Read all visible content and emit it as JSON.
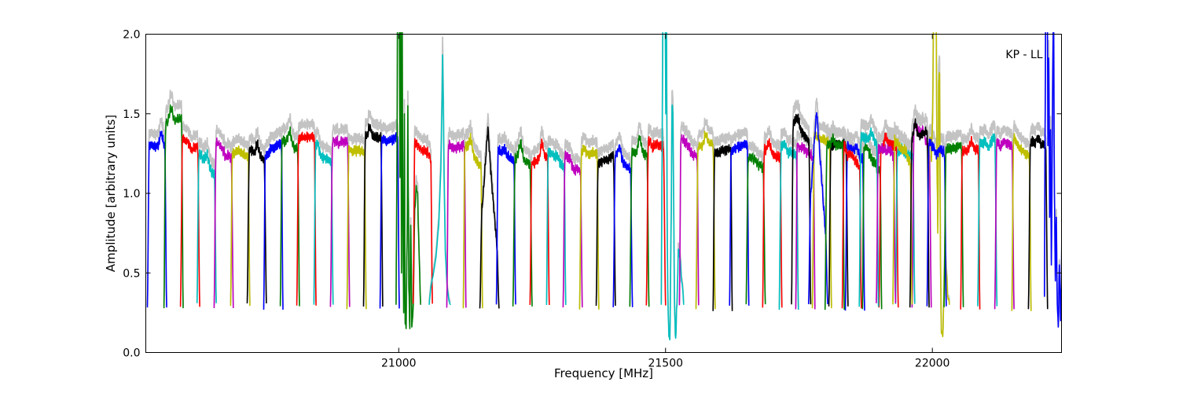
{
  "chart_data": {
    "type": "line",
    "title": "",
    "xlabel": "Frequency [MHz]",
    "ylabel": "Amplitude [arbitrary units]",
    "annotation": "KP - LL",
    "xlim": [
      20526,
      22242
    ],
    "ylim": [
      0.0,
      2.0
    ],
    "grid": false,
    "legend": "none",
    "x_ticks": [
      {
        "v": 21000,
        "label": "21000"
      },
      {
        "v": 21500,
        "label": "21500"
      },
      {
        "v": 22000,
        "label": "22000"
      }
    ],
    "y_ticks": [
      {
        "v": 0.0,
        "label": "0.0"
      },
      {
        "v": 0.5,
        "label": "0.5"
      },
      {
        "v": 1.0,
        "label": "1.0"
      },
      {
        "v": 1.5,
        "label": "1.5"
      },
      {
        "v": 2.0,
        "label": "2.0"
      }
    ],
    "palette": {
      "b": "#0000ff",
      "g": "#007f00",
      "r": "#ff0000",
      "c": "#00bfbf",
      "m": "#bf00bf",
      "y": "#bfbf00",
      "k": "#000000",
      "gray": "#c3c3c3"
    },
    "band_floor": 0.28,
    "bands": [
      {
        "c": 20547,
        "w": 36,
        "col": "b",
        "peak": 1.3
      },
      {
        "c": 20578,
        "w": 36,
        "col": "g",
        "peak": 1.45
      },
      {
        "c": 20609,
        "w": 36,
        "col": "r",
        "peak": 1.33
      },
      {
        "c": 20640,
        "w": 36,
        "col": "c",
        "peak": 1.22
      },
      {
        "c": 20672,
        "w": 36,
        "col": "m",
        "peak": 1.3
      },
      {
        "c": 20703,
        "w": 36,
        "col": "y",
        "peak": 1.27
      },
      {
        "c": 20734,
        "w": 36,
        "col": "k",
        "peak": 1.26
      },
      {
        "c": 20765,
        "w": 36,
        "col": "b",
        "peak": 1.27
      },
      {
        "c": 20796,
        "w": 36,
        "col": "g",
        "peak": 1.32
      },
      {
        "c": 20827,
        "w": 36,
        "col": "r",
        "peak": 1.35
      },
      {
        "c": 20859,
        "w": 36,
        "col": "c",
        "peak": 1.24
      },
      {
        "c": 20890,
        "w": 36,
        "col": "m",
        "peak": 1.33
      },
      {
        "c": 20921,
        "w": 36,
        "col": "y",
        "peak": 1.28
      },
      {
        "c": 20952,
        "w": 36,
        "col": "k",
        "peak": 1.35
      },
      {
        "c": 20983,
        "w": 36,
        "col": "b",
        "peak": 1.32
      },
      {
        "c": 21018,
        "w": 46,
        "col": "g",
        "peak": 2.3,
        "type": "spiky",
        "pts": [
          [
            0,
            0.3
          ],
          [
            0.03,
            1.0
          ],
          [
            0.06,
            2.3
          ],
          [
            0.13,
            2.3
          ],
          [
            0.16,
            1.1
          ],
          [
            0.19,
            2.2
          ],
          [
            0.22,
            0.5
          ],
          [
            0.25,
            2.1
          ],
          [
            0.28,
            0.8
          ],
          [
            0.31,
            0.25
          ],
          [
            0.34,
            1.5
          ],
          [
            0.37,
            0.18
          ],
          [
            0.41,
            0.15
          ],
          [
            0.45,
            0.7
          ],
          [
            0.48,
            1.55
          ],
          [
            0.52,
            0.4
          ],
          [
            0.56,
            0.15
          ],
          [
            0.6,
            0.8
          ],
          [
            0.64,
            0.16
          ],
          [
            0.7,
            0.3
          ],
          [
            0.76,
            0.9
          ],
          [
            0.82,
            1.05
          ],
          [
            0.88,
            1.0
          ],
          [
            0.94,
            0.6
          ],
          [
            1,
            0.3
          ]
        ]
      },
      {
        "c": 21045,
        "w": 36,
        "col": "r",
        "peak": 1.3
      },
      {
        "c": 21077,
        "w": 40,
        "col": "c",
        "peak": 1.87,
        "type": "triangle",
        "jitter": 0.03,
        "pts": [
          [
            0,
            0.3
          ],
          [
            0.07,
            0.4
          ],
          [
            0.18,
            0.48
          ],
          [
            0.32,
            0.6
          ],
          [
            0.45,
            0.8
          ],
          [
            0.55,
            1.15
          ],
          [
            0.6,
            1.55
          ],
          [
            0.63,
            1.87
          ],
          [
            0.66,
            1.6
          ],
          [
            0.7,
            1.1
          ],
          [
            0.76,
            0.62
          ],
          [
            0.84,
            0.42
          ],
          [
            0.92,
            0.33
          ],
          [
            1,
            0.3
          ]
        ]
      },
      {
        "c": 21108,
        "w": 36,
        "col": "m",
        "peak": 1.28
      },
      {
        "c": 21139,
        "w": 36,
        "col": "y",
        "peak": 1.27
      },
      {
        "c": 21170,
        "w": 36,
        "col": "k",
        "peak": 1.36,
        "type": "peaked"
      },
      {
        "c": 21201,
        "w": 36,
        "col": "b",
        "peak": 1.25
      },
      {
        "c": 21232,
        "w": 36,
        "col": "g",
        "peak": 1.22
      },
      {
        "c": 21264,
        "w": 36,
        "col": "r",
        "peak": 1.2
      },
      {
        "c": 21295,
        "w": 36,
        "col": "c",
        "peak": 1.24
      },
      {
        "c": 21326,
        "w": 36,
        "col": "m",
        "peak": 1.22
      },
      {
        "c": 21357,
        "w": 36,
        "col": "y",
        "peak": 1.24
      },
      {
        "c": 21388,
        "w": 36,
        "col": "k",
        "peak": 1.2
      },
      {
        "c": 21420,
        "w": 36,
        "col": "b",
        "peak": 1.22
      },
      {
        "c": 21451,
        "w": 36,
        "col": "g",
        "peak": 1.25
      },
      {
        "c": 21482,
        "w": 36,
        "col": "r",
        "peak": 1.33
      },
      {
        "c": 21513,
        "w": 42,
        "col": "c",
        "peak": 2.3,
        "type": "spiky",
        "pts": [
          [
            0,
            0.3
          ],
          [
            0.04,
            1.3
          ],
          [
            0.08,
            2.3
          ],
          [
            0.17,
            2.35
          ],
          [
            0.2,
            1.5
          ],
          [
            0.23,
            2.2
          ],
          [
            0.26,
            0.9
          ],
          [
            0.3,
            0.3
          ],
          [
            0.34,
            0.1
          ],
          [
            0.38,
            0.08
          ],
          [
            0.43,
            0.7
          ],
          [
            0.48,
            1.55
          ],
          [
            0.52,
            1.5
          ],
          [
            0.56,
            0.8
          ],
          [
            0.6,
            0.25
          ],
          [
            0.64,
            0.09
          ],
          [
            0.7,
            0.3
          ],
          [
            0.76,
            0.65
          ],
          [
            0.83,
            0.6
          ],
          [
            0.9,
            0.45
          ],
          [
            1,
            0.3
          ]
        ]
      },
      {
        "c": 21544,
        "w": 36,
        "col": "m",
        "peak": 1.32
      },
      {
        "c": 21575,
        "w": 36,
        "col": "y",
        "peak": 1.3
      },
      {
        "c": 21607,
        "w": 36,
        "col": "k",
        "peak": 1.26
      },
      {
        "c": 21638,
        "w": 36,
        "col": "b",
        "peak": 1.28
      },
      {
        "c": 21669,
        "w": 36,
        "col": "g",
        "peak": 1.23
      },
      {
        "c": 21700,
        "w": 36,
        "col": "r",
        "peak": 1.26
      },
      {
        "c": 21731,
        "w": 36,
        "col": "c",
        "peak": 1.27
      },
      {
        "c": 21762,
        "w": 36,
        "col": "m",
        "peak": 1.3
      },
      {
        "c": 21793,
        "w": 36,
        "col": "y",
        "peak": 1.35
      },
      {
        "c": 21824,
        "w": 36,
        "col": "k",
        "peak": 1.32
      },
      {
        "c": 21855,
        "w": 36,
        "col": "b",
        "peak": 1.28
      },
      {
        "c": 21887,
        "w": 36,
        "col": "g",
        "peak": 1.25
      },
      {
        "c": 21918,
        "w": 36,
        "col": "r",
        "peak": 1.28
      },
      {
        "c": 21949,
        "w": 36,
        "col": "c",
        "peak": 1.26
      },
      {
        "c": 21980,
        "w": 36,
        "col": "m",
        "peak": 1.4
      },
      {
        "c": 22011,
        "w": 42,
        "col": "y",
        "peak": 2.3,
        "type": "spiky",
        "pts": [
          [
            0,
            0.3
          ],
          [
            0.05,
            0.95
          ],
          [
            0.1,
            1.3
          ],
          [
            0.16,
            1.35
          ],
          [
            0.2,
            1.2
          ],
          [
            0.25,
            1.45
          ],
          [
            0.3,
            2.3
          ],
          [
            0.4,
            2.35
          ],
          [
            0.44,
            1.3
          ],
          [
            0.48,
            0.75
          ],
          [
            0.52,
            1.7
          ],
          [
            0.56,
            1.75
          ],
          [
            0.6,
            0.6
          ],
          [
            0.64,
            0.12
          ],
          [
            0.7,
            0.1
          ],
          [
            0.75,
            0.35
          ],
          [
            0.8,
            0.7
          ],
          [
            0.86,
            0.5
          ],
          [
            0.92,
            0.35
          ],
          [
            1,
            0.3
          ]
        ]
      },
      {
        "c": 21754,
        "w": 36,
        "col": "k",
        "peak": 1.42
      },
      {
        "c": 21786,
        "w": 36,
        "col": "b",
        "peak": 1.52,
        "type": "peaked"
      },
      {
        "c": 21817,
        "w": 36,
        "col": "g",
        "peak": 1.3
      },
      {
        "c": 21849,
        "w": 36,
        "col": "r",
        "peak": 1.28
      },
      {
        "c": 21881,
        "w": 36,
        "col": "c",
        "peak": 1.35
      },
      {
        "c": 21913,
        "w": 36,
        "col": "m",
        "peak": 1.28
      },
      {
        "c": 21944,
        "w": 36,
        "col": "y",
        "peak": 1.3
      },
      {
        "c": 21976,
        "w": 36,
        "col": "k",
        "peak": 1.35
      },
      {
        "c": 22008,
        "w": 36,
        "col": "b",
        "peak": 1.3
      },
      {
        "c": 22040,
        "w": 36,
        "col": "g",
        "peak": 1.28
      },
      {
        "c": 22071,
        "w": 36,
        "col": "r",
        "peak": 1.27
      },
      {
        "c": 22103,
        "w": 36,
        "col": "c",
        "peak": 1.32
      },
      {
        "c": 22135,
        "w": 36,
        "col": "m",
        "peak": 1.33
      },
      {
        "c": 22167,
        "w": 36,
        "col": "y",
        "peak": 1.3
      },
      {
        "c": 22198,
        "w": 36,
        "col": "k",
        "peak": 1.32
      },
      {
        "c": 22228,
        "w": 36,
        "col": "b",
        "peak": 2.3,
        "type": "spiky",
        "pts": [
          [
            0,
            0.35
          ],
          [
            0.04,
            1.5
          ],
          [
            0.07,
            2.35
          ],
          [
            0.15,
            2.3
          ],
          [
            0.18,
            1.3
          ],
          [
            0.22,
            1.85
          ],
          [
            0.27,
            0.85
          ],
          [
            0.32,
            1.4
          ],
          [
            0.36,
            0.55
          ],
          [
            0.42,
            1.5
          ],
          [
            0.47,
            2.3
          ],
          [
            0.52,
            1.0
          ],
          [
            0.57,
            0.45
          ],
          [
            0.62,
            0.85
          ],
          [
            0.67,
            0.3
          ],
          [
            0.72,
            0.16
          ],
          [
            0.78,
            0.55
          ],
          [
            0.84,
            0.2
          ],
          [
            0.9,
            0.65
          ],
          [
            1,
            0.75
          ]
        ]
      }
    ]
  }
}
